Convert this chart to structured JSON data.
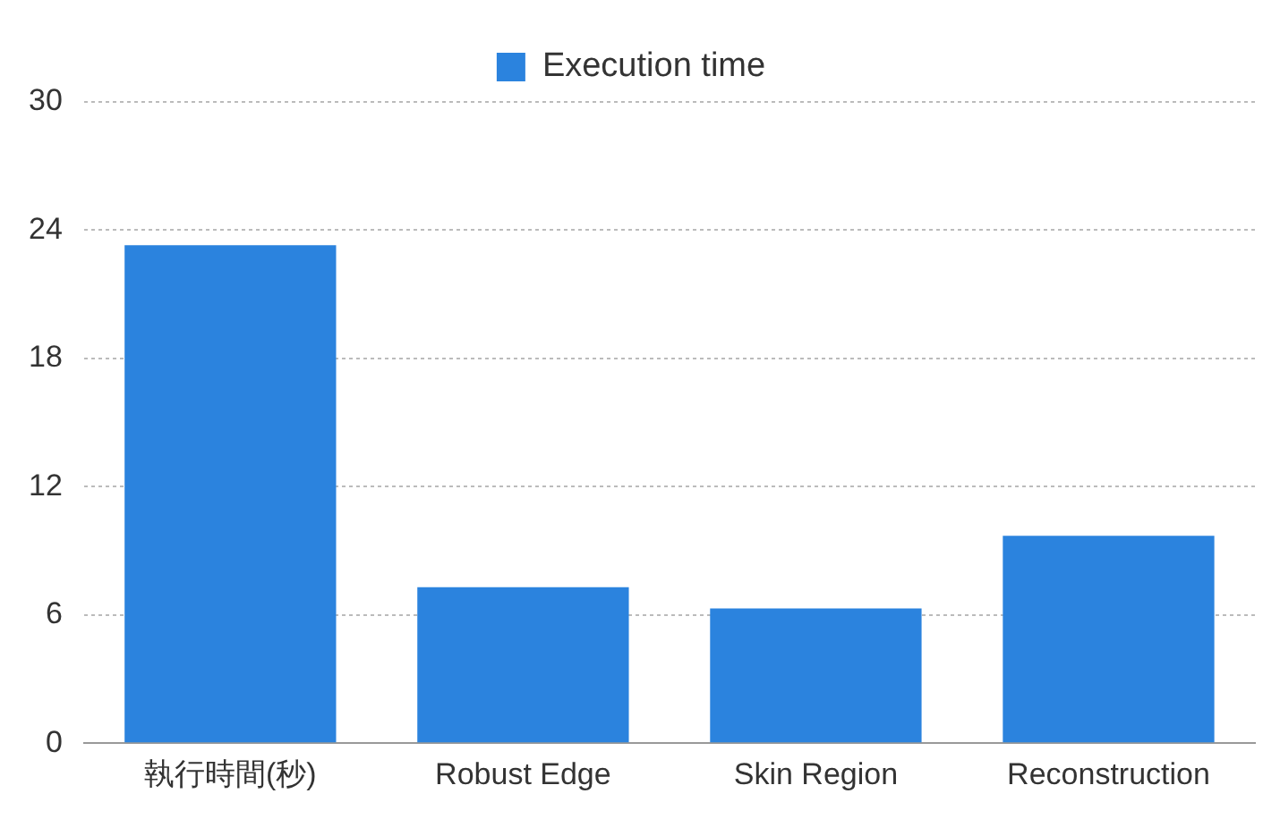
{
  "chart_data": {
    "type": "bar",
    "categories": [
      "執行時間(秒)",
      "Robust Edge",
      "Skin Region",
      "Reconstruction"
    ],
    "series": [
      {
        "name": "Execution time",
        "color": "#2b83de",
        "values": [
          23.3,
          7.3,
          6.3,
          9.7
        ]
      }
    ],
    "ylim": [
      0,
      30
    ],
    "yticks": [
      0,
      6,
      12,
      18,
      24,
      30
    ],
    "grid": "y",
    "legend": "top"
  }
}
